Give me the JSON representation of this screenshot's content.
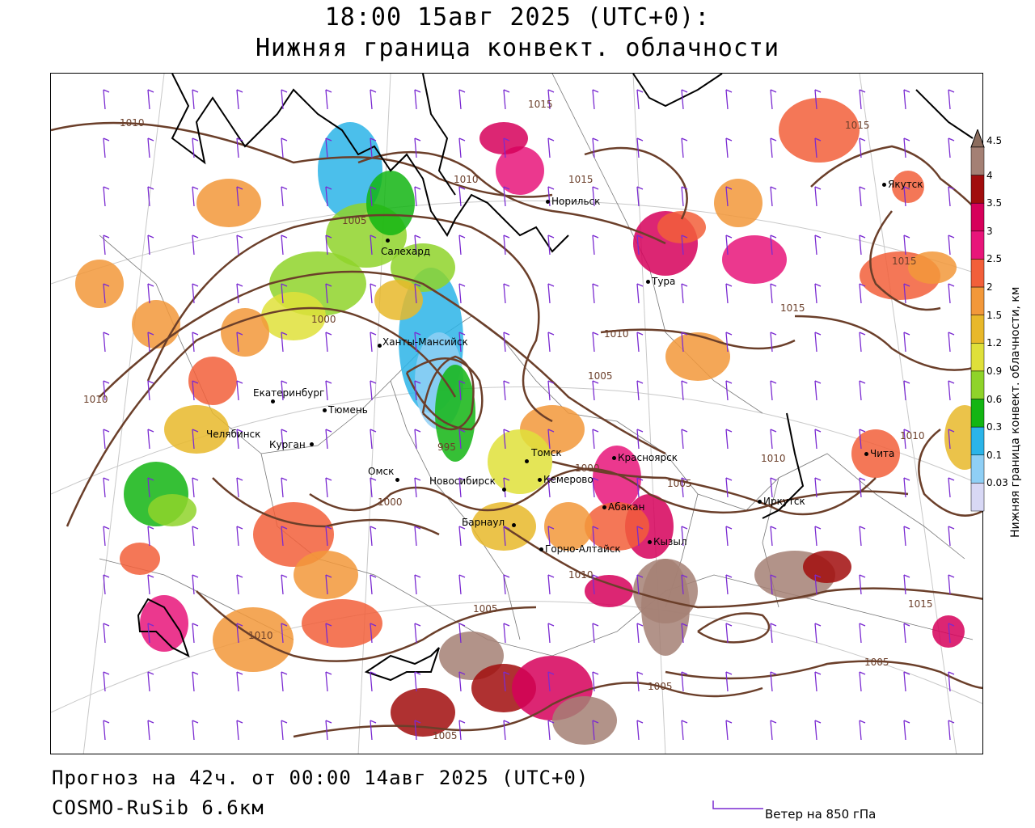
{
  "header": {
    "line1": "18:00 15авг 2025 (UTC+0):",
    "line2": "Нижняя граница конвект. облачности"
  },
  "footer": {
    "forecast": "Прогноз на 42ч. от 00:00 14авг 2025 (UTC+0)",
    "model": "COSMO-RuSib 6.6км",
    "wind_legend": "Ветер на 850 гПа"
  },
  "colorbar": {
    "title": "Нижняя граница конвект. облачности, км",
    "levels": [
      "4.5",
      "4",
      "3.5",
      "3",
      "2.5",
      "2",
      "1.5",
      "1.2",
      "0.9",
      "0.6",
      "0.3",
      "0.1",
      "0.03"
    ],
    "colors": [
      "#8c6d5e",
      "#a48074",
      "#a10d0d",
      "#d6005a",
      "#e8157a",
      "#f25f3a",
      "#f2983a",
      "#e8b82a",
      "#dfe03a",
      "#8fd32a",
      "#13b513",
      "#2bb4e8",
      "#8fcff5",
      "#d8d8f5"
    ]
  },
  "cities": [
    {
      "name": "Норильск"
    },
    {
      "name": "Якутск"
    },
    {
      "name": "Салехард"
    },
    {
      "name": "Тура"
    },
    {
      "name": "Ханты-Мансийск"
    },
    {
      "name": "Екатеринбург"
    },
    {
      "name": "Тюмень"
    },
    {
      "name": "Челябинск"
    },
    {
      "name": "Курган"
    },
    {
      "name": "Омск"
    },
    {
      "name": "Томск"
    },
    {
      "name": "Красноярск"
    },
    {
      "name": "Новосибирск"
    },
    {
      "name": "Кемерово"
    },
    {
      "name": "Абакан"
    },
    {
      "name": "Барнаул"
    },
    {
      "name": "Горно-Алтайск"
    },
    {
      "name": "Кызыл"
    },
    {
      "name": "Иркутск"
    },
    {
      "name": "Чита"
    }
  ],
  "isobar_labels": [
    "1010",
    "1015",
    "1015",
    "1015",
    "1010",
    "1005",
    "1015",
    "1015",
    "1000",
    "1010",
    "1010",
    "1005",
    "995",
    "1000",
    "1010",
    "1005",
    "1000",
    "1010",
    "1010",
    "1015",
    "1005",
    "1010",
    "1005",
    "1005",
    "1005",
    "1010",
    "1010"
  ],
  "colors": {
    "isobar": "#6b3f2a",
    "wind": "#7a2ad1",
    "coast": "#000000",
    "border": "#555555"
  }
}
